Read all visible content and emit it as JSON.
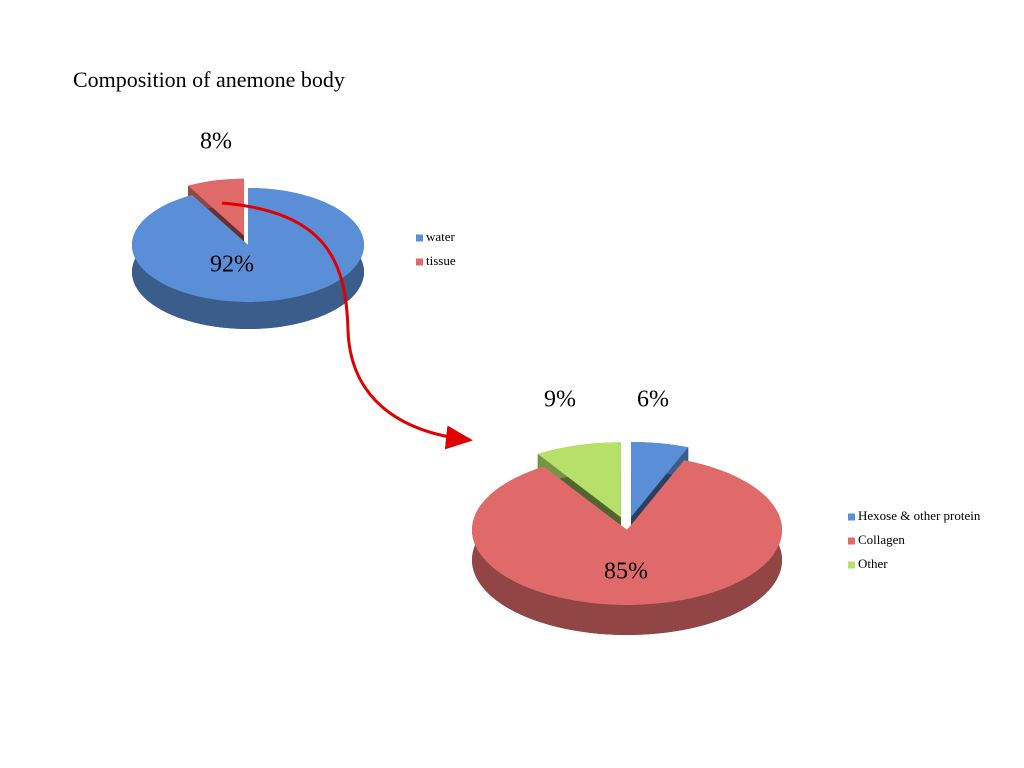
{
  "title": "Composition of anemone body",
  "chart_data": [
    {
      "type": "pie",
      "categories": [
        "water",
        "tissue"
      ],
      "values": [
        92,
        8
      ],
      "value_labels": [
        "92%",
        "8%"
      ],
      "colors": [
        "#5a8fd8",
        "#e06a6a"
      ],
      "exploded": [
        false,
        true
      ],
      "legend": "right"
    },
    {
      "type": "pie",
      "categories": [
        "Hexose & other protein",
        "Collagen",
        "Other"
      ],
      "values": [
        6,
        85,
        9
      ],
      "value_labels": [
        "6%",
        "85%",
        "9%"
      ],
      "colors": [
        "#5a8fd8",
        "#e06a6a",
        "#b6e06a"
      ],
      "exploded": [
        true,
        false,
        true
      ],
      "legend": "right"
    }
  ]
}
